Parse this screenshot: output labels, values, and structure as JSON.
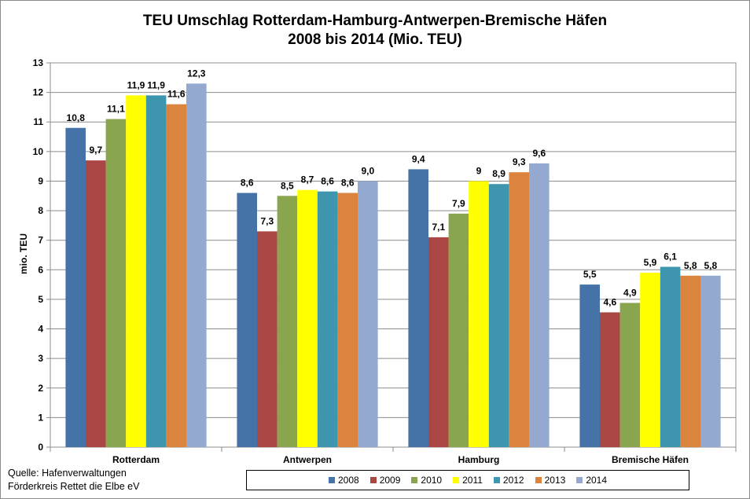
{
  "chart_data": {
    "type": "bar",
    "title_line1": "TEU Umschlag Rotterdam-Hamburg-Antwerpen-Bremische Häfen",
    "title_line2": "2008 bis 2014 (Mio. TEU)",
    "ylabel": "mio. TEU",
    "xlabel": "",
    "ylim": [
      0,
      13
    ],
    "yticks": [
      "0",
      "1",
      "2",
      "3",
      "4",
      "5",
      "6",
      "7",
      "8",
      "9",
      "10",
      "11",
      "12",
      "13"
    ],
    "grid": true,
    "legend_position": "bottom",
    "categories": [
      "Rotterdam",
      "Antwerpen",
      "Hamburg",
      "Bremische Häfen"
    ],
    "series": [
      {
        "name": "2008",
        "color": "#4572a7",
        "values": [
          10.8,
          8.6,
          9.4,
          5.5
        ],
        "labels": [
          "10,8",
          "8,6",
          "9,4",
          "5,5"
        ]
      },
      {
        "name": "2009",
        "color": "#aa4643",
        "values": [
          9.7,
          7.3,
          7.1,
          4.56
        ],
        "labels": [
          "9,7",
          "7,3",
          "7,1",
          "4,6"
        ]
      },
      {
        "name": "2010",
        "color": "#89a54e",
        "values": [
          11.1,
          8.5,
          7.9,
          4.88
        ],
        "labels": [
          "11,1",
          "8,5",
          "7,9",
          "4,9"
        ]
      },
      {
        "name": "2011",
        "color": "#ffff00",
        "values": [
          11.9,
          8.7,
          9.0,
          5.9
        ],
        "labels": [
          "11,9",
          "8,7",
          "9",
          "5,9"
        ]
      },
      {
        "name": "2012",
        "color": "#3d96ae",
        "values": [
          11.9,
          8.65,
          8.9,
          6.1
        ],
        "labels": [
          "11,9",
          "8,6",
          "8,9",
          "6,1"
        ]
      },
      {
        "name": "2013",
        "color": "#db843d",
        "values": [
          11.6,
          8.6,
          9.3,
          5.8
        ],
        "labels": [
          "11,6",
          "8,6",
          "9,3",
          "5,8"
        ]
      },
      {
        "name": "2014",
        "color": "#93a9cf",
        "values": [
          12.3,
          9.0,
          9.6,
          5.8
        ],
        "labels": [
          "12,3",
          "9,0",
          "9,6",
          "5,8"
        ]
      }
    ]
  },
  "source": {
    "line1": "Quelle: Hafenverwaltungen",
    "line2": "Förderkreis Rettet die Elbe eV"
  }
}
